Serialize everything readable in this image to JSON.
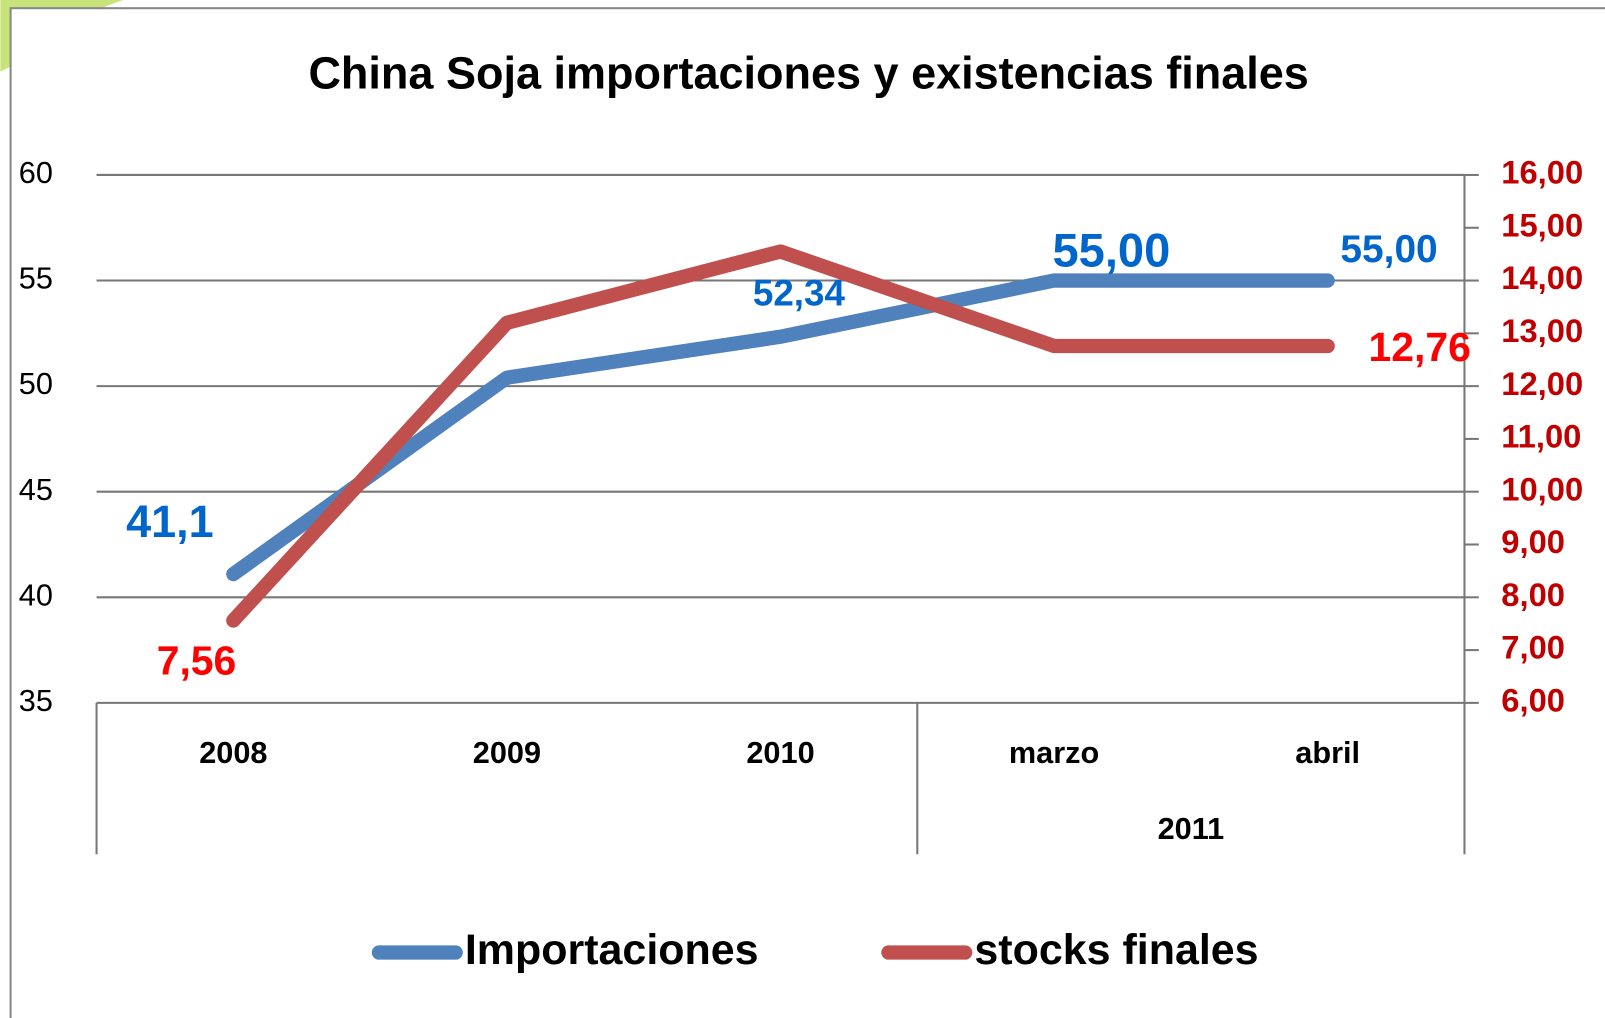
{
  "chart_data": {
    "type": "line",
    "title": "China Soja importaciones y existencias finales",
    "categories": [
      "2008",
      "2009",
      "2010",
      "marzo",
      "abril"
    ],
    "category_groups": [
      null,
      null,
      null,
      "2011",
      "2011"
    ],
    "series": [
      {
        "name": "Importaciones",
        "color": "#4f81bd",
        "label_color": "#0066cc",
        "values": [
          41.1,
          50.4,
          52.34,
          55.0,
          55.0
        ],
        "value_labels": [
          "41,1",
          null,
          "52,34",
          "55,00",
          "55,00"
        ]
      },
      {
        "name": "stocks finales",
        "color": "#c0504d",
        "label_color": "#ff0000",
        "axis": "y2",
        "values": [
          7.56,
          13.2,
          14.55,
          12.76,
          12.76
        ],
        "value_labels": [
          "7,56",
          null,
          null,
          null,
          "12,76"
        ]
      }
    ],
    "ylim": [
      35,
      60
    ],
    "yticks": [
      35,
      40,
      45,
      50,
      55,
      60
    ],
    "y2lim": [
      6,
      16
    ],
    "y2ticks": [
      {
        "value": 6,
        "label": "6,00"
      },
      {
        "value": 7,
        "label": "7,00"
      },
      {
        "value": 8,
        "label": "8,00"
      },
      {
        "value": 9,
        "label": "9,00"
      },
      {
        "value": 10,
        "label": "10,00"
      },
      {
        "value": 11,
        "label": "11,00"
      },
      {
        "value": 12,
        "label": "12,00"
      },
      {
        "value": 13,
        "label": "13,00"
      },
      {
        "value": 14,
        "label": "14,00"
      },
      {
        "value": 15,
        "label": "15,00"
      },
      {
        "value": 16,
        "label": "16,00"
      }
    ],
    "y2_color": "#c00000",
    "grid": true,
    "legend": "bottom"
  }
}
